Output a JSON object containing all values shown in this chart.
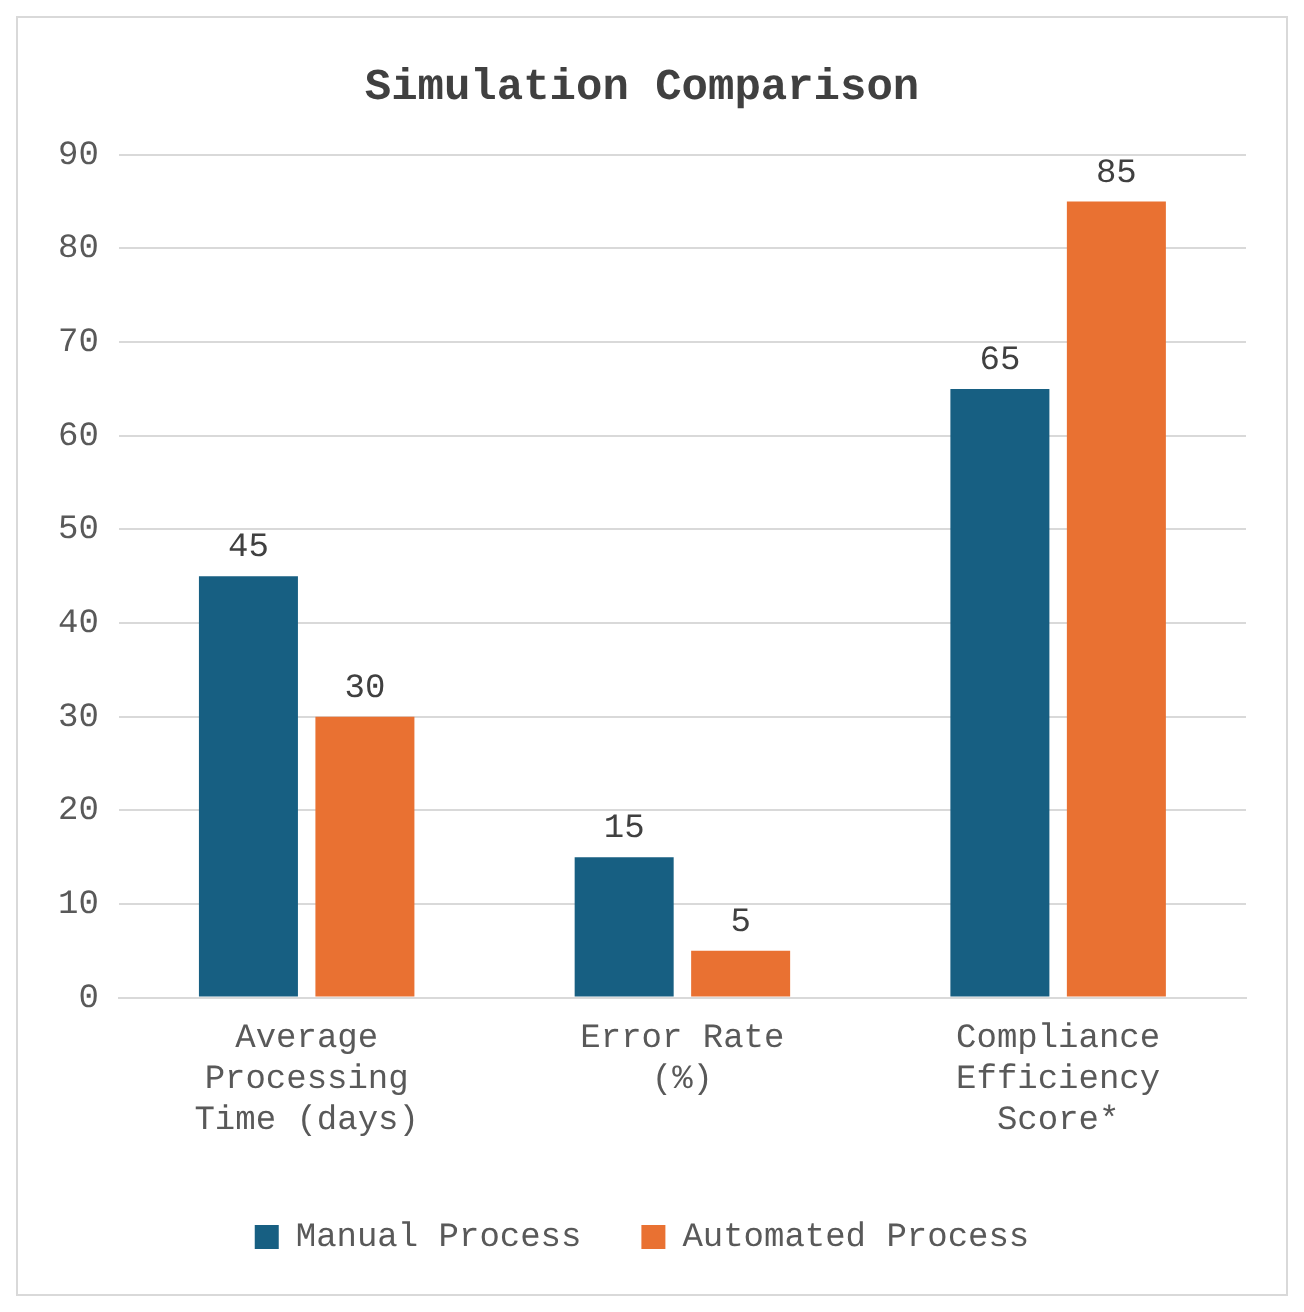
{
  "chart_data": {
    "type": "bar",
    "title": "Simulation Comparison",
    "categories": [
      "Average Processing Time (days)",
      "Error Rate (%)",
      "Compliance Efficiency Score*"
    ],
    "series": [
      {
        "name": "Manual Process",
        "color": "#175f82",
        "values": [
          45,
          15,
          65
        ]
      },
      {
        "name": "Automated Process",
        "color": "#e97132",
        "values": [
          30,
          5,
          85
        ]
      }
    ],
    "ylim": [
      0,
      90
    ],
    "yticks": [
      0,
      10,
      20,
      30,
      40,
      50,
      60,
      70,
      80,
      90
    ],
    "grid": "y",
    "legend": "bottom",
    "data_labels": true
  }
}
